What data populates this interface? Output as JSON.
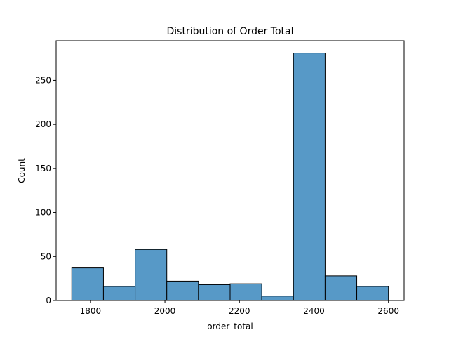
{
  "chart_data": {
    "type": "bar",
    "title": "Distribution of Order Total",
    "xlabel": "order_total",
    "ylabel": "Count",
    "xlim": [
      1708,
      2642
    ],
    "ylim": [
      0,
      295
    ],
    "grid": false,
    "bin_edges": [
      1750,
      1835,
      1920,
      2005,
      2090,
      2175,
      2260,
      2345,
      2430,
      2515,
      2600
    ],
    "values": [
      37,
      16,
      58,
      22,
      18,
      19,
      5,
      281,
      28,
      16
    ],
    "xticks": [
      1800,
      2000,
      2200,
      2400,
      2600
    ],
    "yticks": [
      0,
      50,
      100,
      150,
      200,
      250
    ],
    "colors": {
      "bar_fill": "#5799c7",
      "bar_edge": "#000000"
    }
  }
}
